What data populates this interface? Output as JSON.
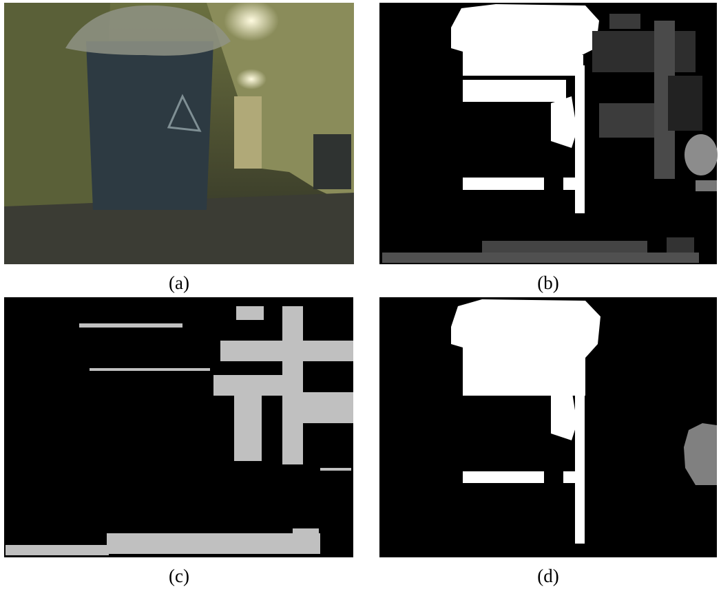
{
  "captions": {
    "a": "(a)",
    "b": "(b)",
    "c": "(c)",
    "d": "(d)"
  }
}
